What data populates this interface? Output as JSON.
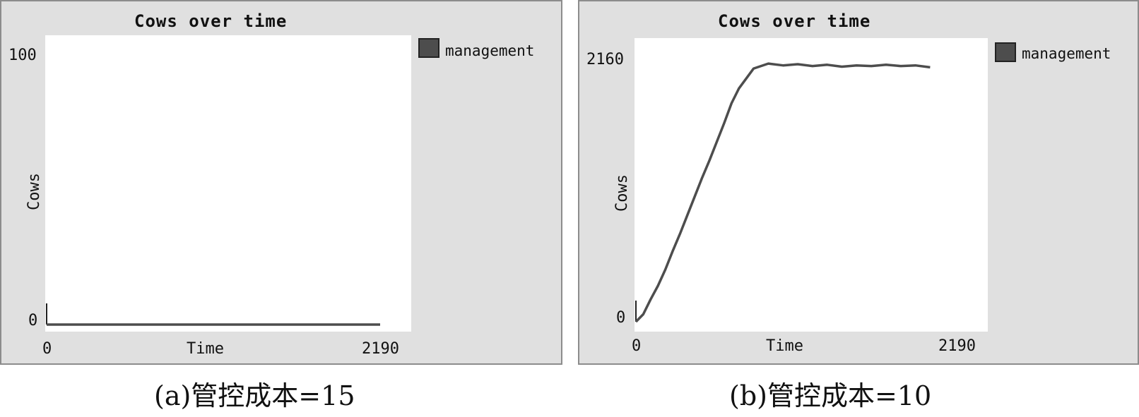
{
  "chart_data": [
    {
      "type": "line",
      "title": "Cows over time",
      "xlabel": "Time",
      "ylabel": "Cows",
      "xlim": [
        0,
        2190
      ],
      "ylim": [
        0,
        100
      ],
      "x_tick_labels": [
        "0",
        "2190"
      ],
      "y_tick_labels": [
        "0",
        "100"
      ],
      "legend": {
        "position": "right",
        "entries": [
          "management"
        ]
      },
      "colors": {
        "series": "#4d4d4d",
        "plot_bg": "#ffffff",
        "panel_bg": "#e0e0e0"
      },
      "series": [
        {
          "name": "management",
          "x": [
            0,
            2190
          ],
          "y": [
            0,
            0
          ]
        }
      ],
      "caption": "(a)管控成本=15"
    },
    {
      "type": "line",
      "title": "Cows over time",
      "xlabel": "Time",
      "ylabel": "Cows",
      "xlim": [
        0,
        2190
      ],
      "ylim": [
        0,
        2160
      ],
      "x_tick_labels": [
        "0",
        "2190"
      ],
      "y_tick_labels": [
        "0",
        "2160"
      ],
      "legend": {
        "position": "right",
        "entries": [
          "management"
        ]
      },
      "colors": {
        "series": "#4d4d4d",
        "plot_bg": "#ffffff",
        "panel_bg": "#e0e0e0"
      },
      "series": [
        {
          "name": "management",
          "x": [
            0,
            50,
            100,
            150,
            200,
            250,
            300,
            350,
            400,
            450,
            500,
            550,
            600,
            650,
            700,
            750,
            800,
            900,
            1000,
            1100,
            1200,
            1300,
            1400,
            1500,
            1600,
            1700,
            1800,
            1900,
            2000
          ],
          "y": [
            0,
            60,
            180,
            290,
            420,
            570,
            710,
            860,
            1010,
            1160,
            1300,
            1450,
            1600,
            1760,
            1880,
            1960,
            2040,
            2080,
            2065,
            2075,
            2060,
            2070,
            2055,
            2065,
            2060,
            2070,
            2060,
            2065,
            2050
          ]
        }
      ],
      "caption": "(b)管控成本=10"
    }
  ]
}
